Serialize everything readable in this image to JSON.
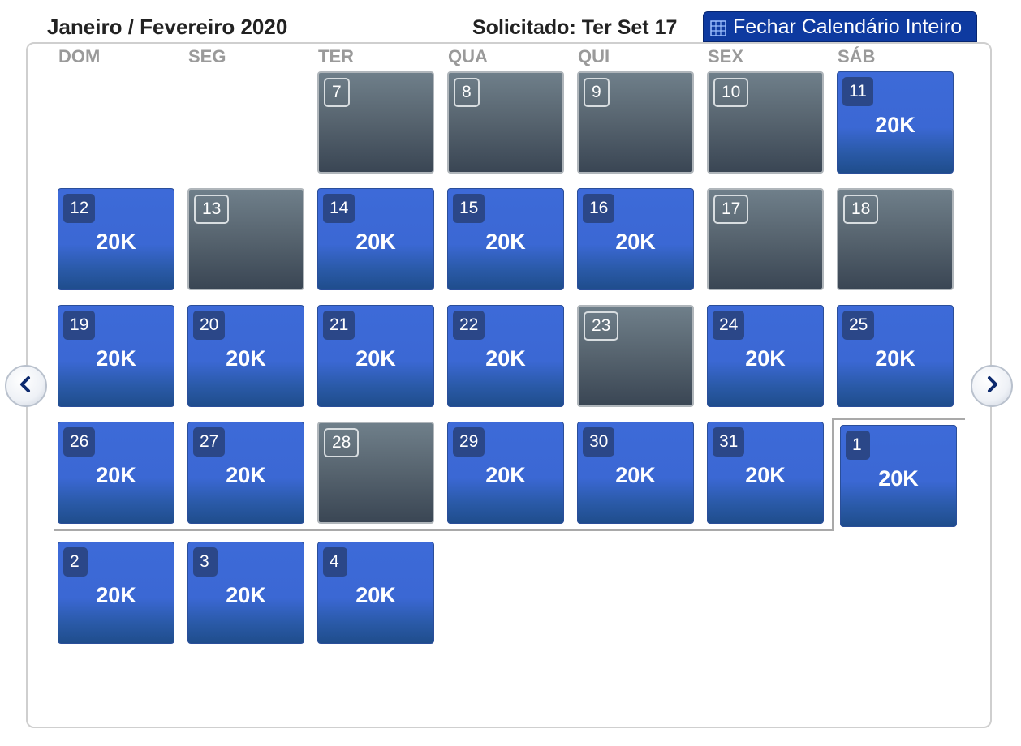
{
  "header": {
    "title": "Janeiro / Fevereiro 2020",
    "requested": "Solicitado: Ter Set 17",
    "close_button": "Fechar Calendário Inteiro"
  },
  "weekdays": [
    "DOM",
    "SEG",
    "TER",
    "QUA",
    "QUI",
    "SEX",
    "SÁB"
  ],
  "days": [
    {
      "day": "7",
      "price": ""
    },
    {
      "day": "8",
      "price": ""
    },
    {
      "day": "9",
      "price": ""
    },
    {
      "day": "10",
      "price": ""
    },
    {
      "day": "11",
      "price": "20K"
    },
    {
      "day": "12",
      "price": "20K"
    },
    {
      "day": "13",
      "price": ""
    },
    {
      "day": "14",
      "price": "20K"
    },
    {
      "day": "15",
      "price": "20K"
    },
    {
      "day": "16",
      "price": "20K"
    },
    {
      "day": "17",
      "price": ""
    },
    {
      "day": "18",
      "price": ""
    },
    {
      "day": "19",
      "price": "20K"
    },
    {
      "day": "20",
      "price": "20K"
    },
    {
      "day": "21",
      "price": "20K"
    },
    {
      "day": "22",
      "price": "20K"
    },
    {
      "day": "23",
      "price": ""
    },
    {
      "day": "24",
      "price": "20K"
    },
    {
      "day": "25",
      "price": "20K"
    },
    {
      "day": "26",
      "price": "20K"
    },
    {
      "day": "27",
      "price": "20K"
    },
    {
      "day": "28",
      "price": ""
    },
    {
      "day": "29",
      "price": "20K"
    },
    {
      "day": "30",
      "price": "20K"
    },
    {
      "day": "31",
      "price": "20K"
    },
    {
      "day": "1",
      "price": "20K"
    },
    {
      "day": "2",
      "price": "20K"
    },
    {
      "day": "3",
      "price": "20K"
    },
    {
      "day": "4",
      "price": "20K"
    }
  ],
  "colors": {
    "available": "#3b68d4",
    "unavailable": "#56636e",
    "header_button": "#0e3aa0"
  },
  "icons": {
    "prev": "chevron-left-icon",
    "next": "chevron-right-icon",
    "calendar": "calendar-grid-icon"
  }
}
